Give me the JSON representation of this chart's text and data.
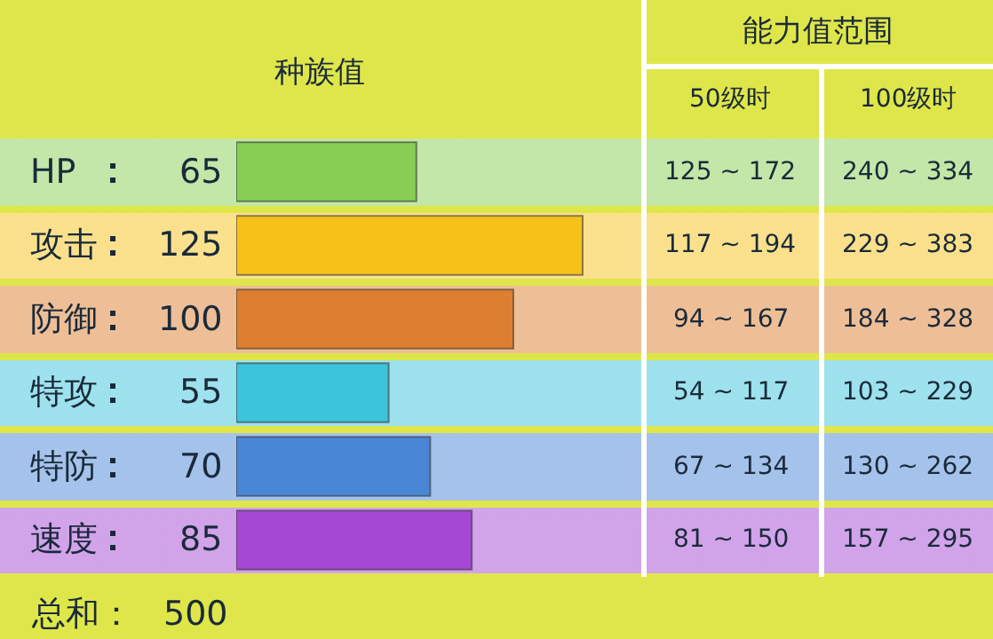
{
  "chart_data": {
    "type": "bar",
    "orientation": "horizontal",
    "title": "种族值",
    "categories": [
      "HP",
      "攻击",
      "防御",
      "特攻",
      "特防",
      "速度"
    ],
    "values": [
      65,
      125,
      100,
      55,
      70,
      85
    ],
    "colors": [
      "#86cf52",
      "#f6c21a",
      "#dd7f2e",
      "#3cc4dc",
      "#4a86d6",
      "#a448d4"
    ],
    "data_labels": true,
    "grid": false,
    "legend": false,
    "tick_labels": false,
    "annotations": [
      "能力值范围",
      "50级时",
      "100级时",
      "125 ~ 172",
      "240 ~ 334",
      "117 ~ 194",
      "229 ~ 383",
      "94 ~ 167",
      "184 ~ 328",
      "54 ~ 117",
      "103 ~ 229",
      "67 ~ 134",
      "130 ~ 262",
      "81 ~ 150",
      "157 ~ 295",
      "总和：",
      "500"
    ]
  }
}
